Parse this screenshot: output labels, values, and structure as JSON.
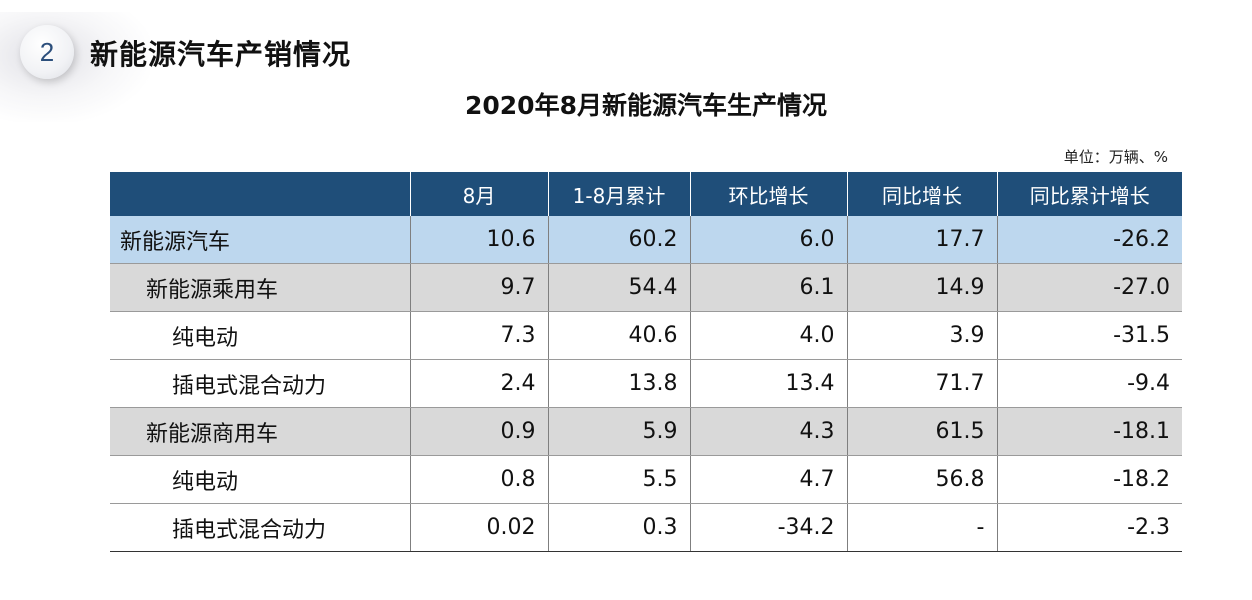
{
  "section": {
    "number": "2",
    "title": "新能源汽车产销情况"
  },
  "table_title": "2020年8月新能源汽车生产情况",
  "unit_note": "单位：万辆、%",
  "table": {
    "columns": [
      "",
      "8月",
      "1-8月累计",
      "环比增长",
      "同比增长",
      "同比累计增长"
    ],
    "rows": [
      {
        "level": 0,
        "cells": [
          "新能源汽车",
          "10.6",
          "60.2",
          "6.0",
          "17.7",
          "-26.2"
        ]
      },
      {
        "level": 1,
        "cells": [
          "新能源乘用车",
          "9.7",
          "54.4",
          "6.1",
          "14.9",
          "-27.0"
        ]
      },
      {
        "level": 2,
        "cells": [
          "纯电动",
          "7.3",
          "40.6",
          "4.0",
          "3.9",
          "-31.5"
        ]
      },
      {
        "level": 2,
        "cells": [
          "插电式混合动力",
          "2.4",
          "13.8",
          "13.4",
          "71.7",
          "-9.4"
        ]
      },
      {
        "level": 1,
        "cells": [
          "新能源商用车",
          "0.9",
          "5.9",
          "4.3",
          "61.5",
          "-18.1"
        ]
      },
      {
        "level": 2,
        "cells": [
          "纯电动",
          "0.8",
          "5.5",
          "4.7",
          "56.8",
          "-18.2"
        ]
      },
      {
        "level": 2,
        "cells": [
          "插电式混合动力",
          "0.02",
          "0.3",
          "-34.2",
          "-",
          "-2.3"
        ]
      }
    ]
  },
  "colors": {
    "header_bg": "#1f4e79",
    "total_row_bg": "#bdd7ee",
    "subtotal_row_bg": "#d9d9d9",
    "badge_text": "#2c4f7c"
  }
}
